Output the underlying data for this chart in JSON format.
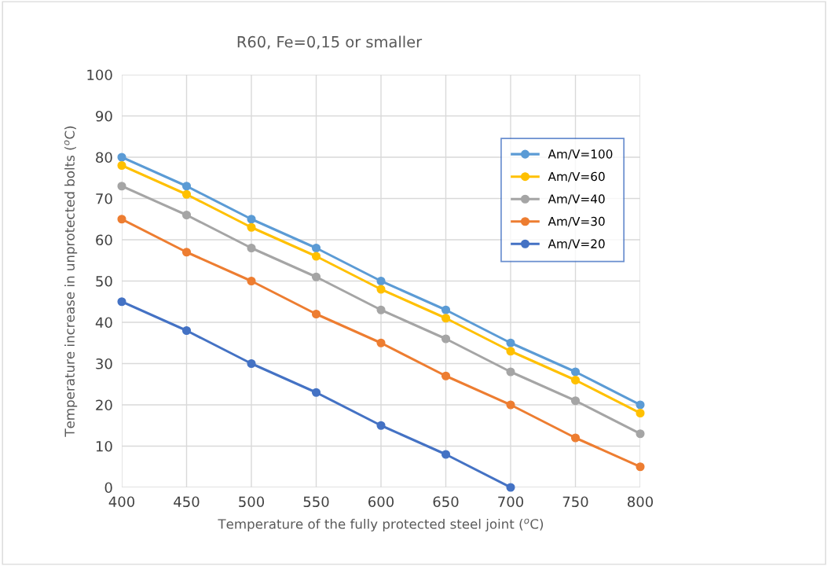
{
  "chart_data": {
    "type": "line",
    "title": "R60, Fe=0,15 or smaller",
    "xlabel": "Temperature of the fully protected steel joint ($^{o}$C)",
    "ylabel": "Temperature increase in unprotected bolts ($^{o}$C)",
    "x": [
      400,
      450,
      500,
      550,
      600,
      650,
      700,
      750,
      800
    ],
    "series": [
      {
        "name": "Am/V=100",
        "color": "#5b9bd5",
        "values": [
          80,
          73,
          65,
          58,
          50,
          43,
          35,
          28,
          20
        ]
      },
      {
        "name": "Am/V=60",
        "color": "#ffc000",
        "values": [
          78,
          71,
          63,
          56,
          48,
          41,
          33,
          26,
          18
        ]
      },
      {
        "name": "Am/V=40",
        "color": "#a5a5a5",
        "values": [
          73,
          66,
          58,
          51,
          43,
          36,
          28,
          21,
          13
        ]
      },
      {
        "name": "Am/V=30",
        "color": "#ed7d31",
        "values": [
          65,
          57,
          50,
          42,
          35,
          27,
          20,
          12,
          5
        ]
      },
      {
        "name": "Am/V=20",
        "color": "#4472c4",
        "values": [
          45,
          38,
          30,
          23,
          15,
          8,
          0,
          null,
          null
        ]
      }
    ],
    "xlim": [
      400,
      800
    ],
    "xticks": [
      400,
      450,
      500,
      550,
      600,
      650,
      700,
      750,
      800
    ],
    "ylim": [
      0,
      100
    ],
    "yticks": [
      0,
      10,
      20,
      30,
      40,
      50,
      60,
      70,
      80,
      90,
      100
    ],
    "grid": true,
    "legend": "top right",
    "marker": "circle",
    "line_style": "solid"
  }
}
